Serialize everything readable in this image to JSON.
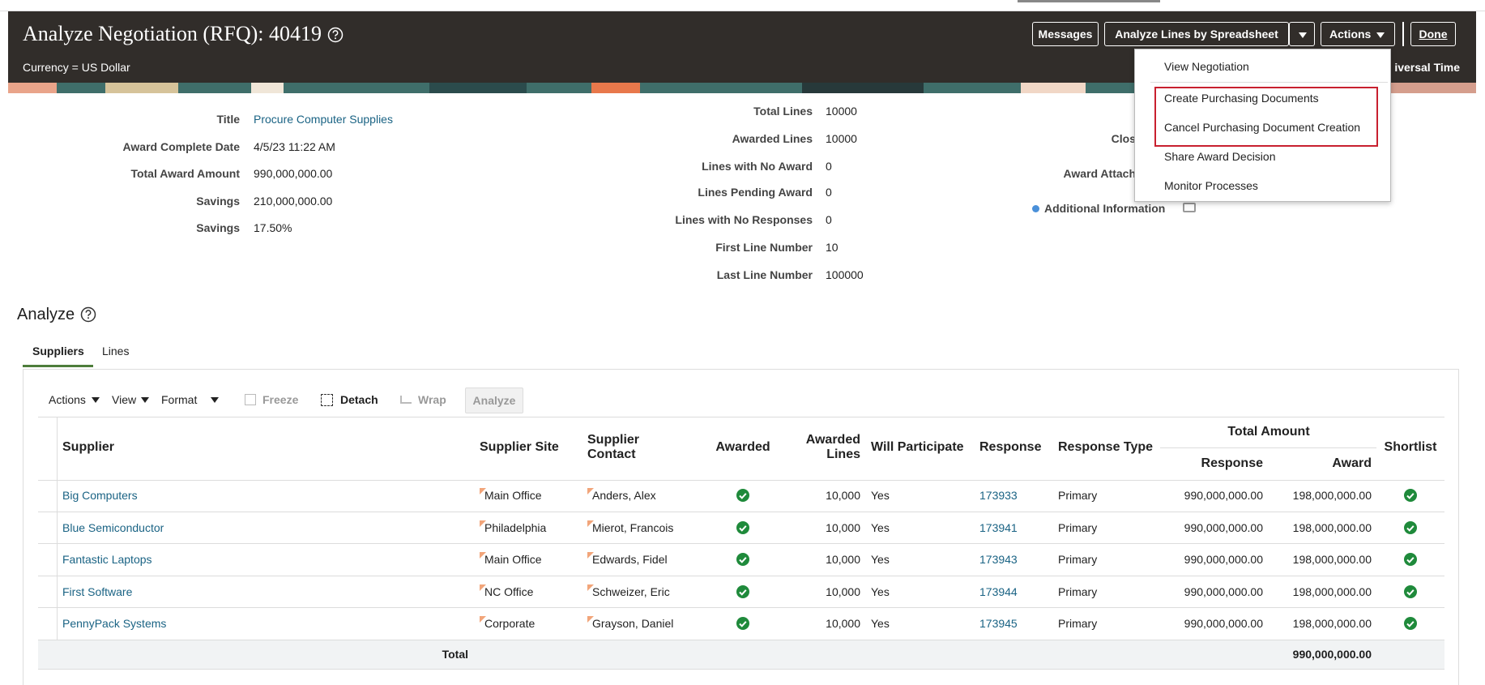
{
  "header": {
    "title": "Analyze Negotiation (RFQ): 40419",
    "currency": "Currency = US Dollar",
    "time_zone": "iversal Time",
    "buttons": [
      "Messages",
      "Analyze Lines by Spreadsheet",
      "Actions",
      "Done"
    ]
  },
  "actions_menu": [
    "View Negotiation",
    "Create Purchasing Documents",
    "Cancel Purchasing Document Creation",
    "Share Award Decision",
    "Monitor Processes"
  ],
  "summary_left": [
    {
      "label": "Title",
      "value": "Procure Computer Supplies"
    },
    {
      "label": "Award Complete Date",
      "value": "4/5/23 11:22 AM"
    },
    {
      "label": "Total Award Amount",
      "value": "990,000,000.00"
    },
    {
      "label": "Savings",
      "value": "210,000,000.00"
    },
    {
      "label": "Savings",
      "value": "17.50%"
    }
  ],
  "summary_middle": [
    {
      "label": "Total Lines",
      "value": "10000"
    },
    {
      "label": "Awarded Lines",
      "value": "10000"
    },
    {
      "label": "Lines with No Award",
      "value": "0"
    },
    {
      "label": "Lines Pending Award",
      "value": "0"
    },
    {
      "label": "Lines with No Responses",
      "value": "0"
    },
    {
      "label": "First Line Number",
      "value": "10"
    },
    {
      "label": "Last Line Number",
      "value": "100000"
    }
  ],
  "summary_right": {
    "labels": [
      "Clos",
      "Award Attach"
    ],
    "additional_information": "Additional Information"
  },
  "analyze": {
    "title": "Analyze",
    "tabs": [
      "Suppliers",
      "Lines"
    ],
    "toolbar": [
      "Actions",
      "View",
      "Format",
      "Freeze",
      "Detach",
      "Wrap",
      "Analyze"
    ]
  },
  "table": {
    "columns": [
      "Supplier",
      "Supplier Site",
      "Supplier Contact",
      "Awarded",
      "Awarded Lines",
      "Will Participate",
      "Response",
      "Response Type",
      "Response",
      "Award",
      "Shortlist"
    ],
    "group_header": "Total Amount",
    "rows": [
      [
        "Big Computers",
        "Main Office",
        "Anders, Alex",
        "10,000",
        "Yes",
        "173933",
        "Primary",
        "990,000,000.00",
        "198,000,000.00"
      ],
      [
        "Blue Semiconductor",
        "Philadelphia",
        "Mierot, Francois",
        "10,000",
        "Yes",
        "173941",
        "Primary",
        "990,000,000.00",
        "198,000,000.00"
      ],
      [
        "Fantastic Laptops",
        "Main Office",
        "Edwards, Fidel",
        "10,000",
        "Yes",
        "173943",
        "Primary",
        "990,000,000.00",
        "198,000,000.00"
      ],
      [
        "First Software",
        "NC Office",
        "Schweizer, Eric",
        "10,000",
        "Yes",
        "173944",
        "Primary",
        "990,000,000.00",
        "198,000,000.00"
      ],
      [
        "PennyPack Systems",
        "Corporate",
        "Grayson, Daniel",
        "10,000",
        "Yes",
        "173945",
        "Primary",
        "990,000,000.00",
        "198,000,000.00"
      ]
    ],
    "total": {
      "label": "Total",
      "award": "990,000,000.00"
    }
  }
}
